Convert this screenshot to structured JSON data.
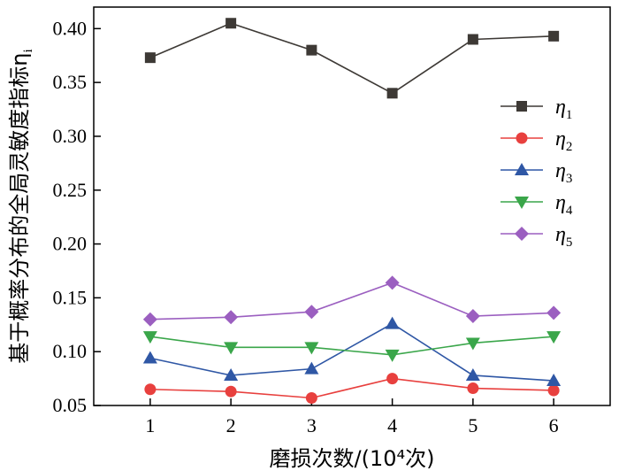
{
  "chart_data": {
    "type": "line",
    "title": "",
    "xlabel": "磨损次数/(10⁴次)",
    "ylabel": "基于概率分布的全局灵敏度指标η",
    "ylabel_sub": "i",
    "x": [
      1,
      2,
      3,
      4,
      5,
      6
    ],
    "xticks": [
      "1",
      "2",
      "3",
      "4",
      "5",
      "6"
    ],
    "xlim": [
      0.3,
      6.7
    ],
    "ylim": [
      0.05,
      0.42
    ],
    "yticks": [
      "0.05",
      "0.10",
      "0.15",
      "0.20",
      "0.25",
      "0.30",
      "0.35",
      "0.40"
    ],
    "legend_position": "right",
    "series": [
      {
        "name": "η",
        "sub": "1",
        "marker": "square",
        "color": "#3d3935",
        "values": [
          0.373,
          0.405,
          0.38,
          0.34,
          0.39,
          0.393
        ]
      },
      {
        "name": "η",
        "sub": "2",
        "marker": "circle",
        "color": "#e8403e",
        "values": [
          0.065,
          0.063,
          0.057,
          0.075,
          0.066,
          0.064
        ]
      },
      {
        "name": "η",
        "sub": "3",
        "marker": "triangle-up",
        "color": "#2f57a5",
        "values": [
          0.094,
          0.078,
          0.084,
          0.126,
          0.078,
          0.073
        ]
      },
      {
        "name": "η",
        "sub": "4",
        "marker": "triangle-down",
        "color": "#3aa64a",
        "values": [
          0.114,
          0.104,
          0.104,
          0.097,
          0.108,
          0.114
        ]
      },
      {
        "name": "η",
        "sub": "5",
        "marker": "diamond",
        "color": "#9b5fc0",
        "values": [
          0.13,
          0.132,
          0.137,
          0.164,
          0.133,
          0.136
        ]
      }
    ]
  }
}
